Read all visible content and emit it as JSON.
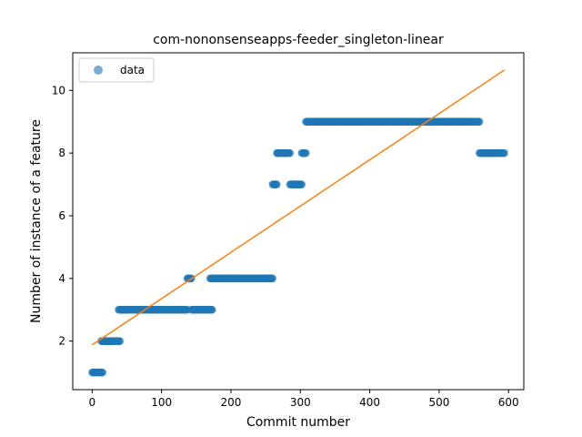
{
  "chart_data": {
    "type": "scatter",
    "title": "com-nononsenseapps-feeder_singleton-linear",
    "xlabel": "Commit number",
    "ylabel": "Number of instance of a feature",
    "xlim": [
      -28,
      622
    ],
    "ylim": [
      0.45,
      11.2
    ],
    "xticks": [
      0,
      100,
      200,
      300,
      400,
      500,
      600
    ],
    "yticks": [
      2,
      4,
      6,
      8,
      10
    ],
    "colors": {
      "data": "#1f77b4",
      "fit": "#ff7f0e"
    },
    "legend": {
      "position": "top-left",
      "entries": [
        "data"
      ]
    },
    "grid": false,
    "series": [
      {
        "name": "data",
        "kind": "points",
        "segments": [
          {
            "x_start": 0,
            "x_end": 15,
            "y": 1
          },
          {
            "x_start": 13,
            "x_end": 40,
            "y": 2
          },
          {
            "x_start": 38,
            "x_end": 137,
            "y": 3
          },
          {
            "x_start": 137,
            "x_end": 143,
            "y": 4
          },
          {
            "x_start": 143,
            "x_end": 173,
            "y": 3
          },
          {
            "x_start": 170,
            "x_end": 260,
            "y": 4
          },
          {
            "x_start": 260,
            "x_end": 266,
            "y": 7
          },
          {
            "x_start": 266,
            "x_end": 285,
            "y": 8
          },
          {
            "x_start": 285,
            "x_end": 302,
            "y": 7
          },
          {
            "x_start": 302,
            "x_end": 308,
            "y": 8
          },
          {
            "x_start": 308,
            "x_end": 558,
            "y": 9
          },
          {
            "x_start": 558,
            "x_end": 594,
            "y": 8
          }
        ]
      },
      {
        "kind": "line",
        "x": [
          0,
          594
        ],
        "y": [
          1.88,
          10.65
        ]
      }
    ]
  }
}
